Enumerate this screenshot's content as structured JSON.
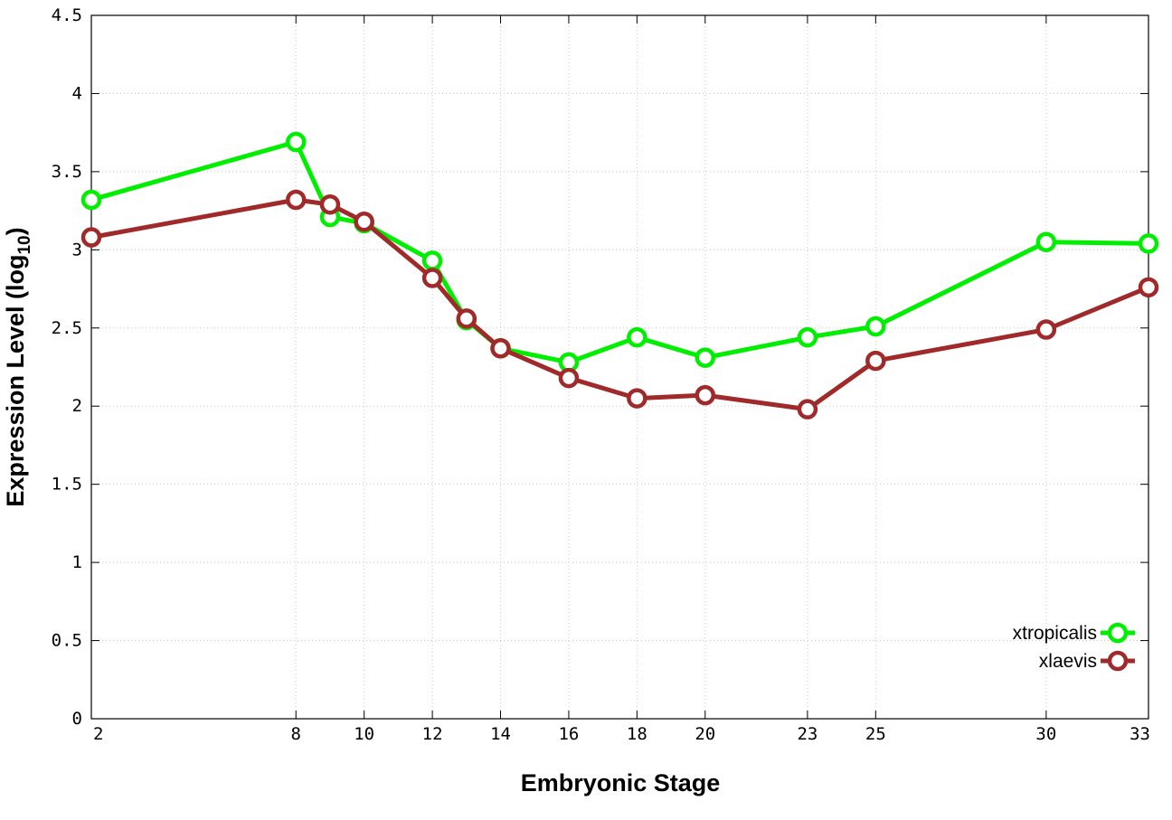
{
  "chart_data": {
    "type": "line",
    "xlabel": "Embryonic Stage",
    "ylabel": "Expression Level (log",
    "ylabel_subscript": "10",
    "ylabel_close": ")",
    "xlim": [
      2,
      33
    ],
    "ylim": [
      0,
      4.5
    ],
    "grid": true,
    "legend_position": "bottom-right",
    "x_ticks": [
      2,
      8,
      10,
      12,
      14,
      16,
      18,
      20,
      23,
      25,
      30,
      33
    ],
    "x_tick_labels": [
      "2",
      "8",
      "10",
      "12",
      "14",
      "16",
      "18",
      "20",
      "23",
      "25",
      "30",
      "33"
    ],
    "y_ticks": [
      0,
      0.5,
      1,
      1.5,
      2,
      2.5,
      3,
      3.5,
      4,
      4.5
    ],
    "y_tick_labels": [
      "0",
      "0.5",
      "1",
      "1.5",
      "2",
      "2.5",
      "3",
      "3.5",
      "4",
      "4.5"
    ],
    "x": [
      2,
      8,
      9,
      10,
      12,
      13,
      14,
      16,
      18,
      20,
      23,
      25,
      30,
      33
    ],
    "series": [
      {
        "name": "xtropicalis",
        "color": "#00ee00",
        "values": [
          3.32,
          3.69,
          3.21,
          3.17,
          2.93,
          2.55,
          2.37,
          2.28,
          2.44,
          2.31,
          2.44,
          2.51,
          3.05,
          3.04
        ]
      },
      {
        "name": "xlaevis",
        "color": "#a0292a",
        "values": [
          3.08,
          3.32,
          3.29,
          3.18,
          2.82,
          2.56,
          2.37,
          2.18,
          2.05,
          2.07,
          1.98,
          2.29,
          2.49,
          2.76
        ]
      }
    ]
  }
}
